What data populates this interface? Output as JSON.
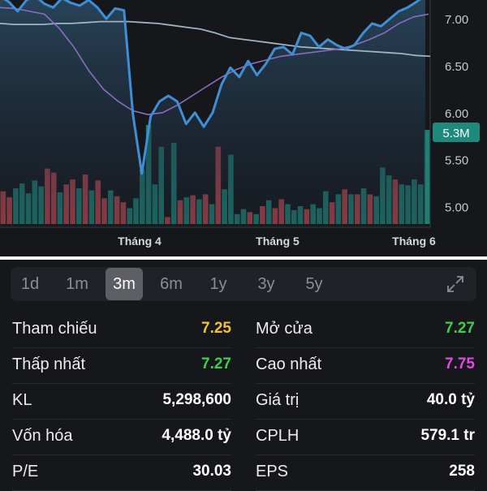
{
  "chart_data": {
    "type": "line",
    "x_labels": [
      "Tháng 4",
      "Tháng 5",
      "Tháng 6"
    ],
    "y_ticks": [
      "7.00",
      "6.50",
      "6.00",
      "5.50",
      "5.00"
    ],
    "y_range": [
      4.78,
      7.2
    ],
    "price_series": [
      7.24,
      7.18,
      7.08,
      7.2,
      7.24,
      7.16,
      7.12,
      7.22,
      7.17,
      7.14,
      7.2,
      7.12,
      7.0,
      7.11,
      7.09,
      5.98,
      5.35,
      5.96,
      6.12,
      6.18,
      6.12,
      5.88,
      6.0,
      5.85,
      6.0,
      6.3,
      6.48,
      6.38,
      6.55,
      6.4,
      6.52,
      6.68,
      6.7,
      6.62,
      6.85,
      6.82,
      6.7,
      6.78,
      6.72,
      6.68,
      6.72,
      6.85,
      6.95,
      6.92,
      7.0,
      7.08,
      7.12,
      7.18,
      7.25
    ],
    "ma_slow_series": [
      6.95,
      6.94,
      6.94,
      6.94,
      6.95,
      6.95,
      6.96,
      6.97,
      6.97,
      6.97,
      6.96,
      6.95,
      6.93,
      6.91,
      6.89,
      6.85,
      6.8,
      6.78,
      6.76,
      6.74,
      6.72,
      6.7,
      6.69,
      6.68,
      6.67,
      6.66,
      6.65,
      6.64,
      6.63,
      6.61,
      6.6
    ],
    "ma_fast_series": [
      7.12,
      7.11,
      7.08,
      7.05,
      6.9,
      6.7,
      6.45,
      6.25,
      6.12,
      6.02,
      5.98,
      6.0,
      6.08,
      6.18,
      6.28,
      6.38,
      6.46,
      6.52,
      6.56,
      6.6,
      6.62,
      6.64,
      6.66,
      6.68,
      6.72,
      6.78,
      6.85,
      6.95,
      7.02,
      7.05
    ],
    "volume_bars": [
      {
        "v": 0.33,
        "up": false
      },
      {
        "v": 0.27,
        "up": false
      },
      {
        "v": 0.36,
        "up": true
      },
      {
        "v": 0.41,
        "up": true
      },
      {
        "v": 0.31,
        "up": true
      },
      {
        "v": 0.44,
        "up": true
      },
      {
        "v": 0.38,
        "up": true
      },
      {
        "v": 0.56,
        "up": false
      },
      {
        "v": 0.52,
        "up": false
      },
      {
        "v": 0.32,
        "up": true
      },
      {
        "v": 0.4,
        "up": false
      },
      {
        "v": 0.45,
        "up": false
      },
      {
        "v": 0.36,
        "up": true
      },
      {
        "v": 0.5,
        "up": false
      },
      {
        "v": 0.34,
        "up": true
      },
      {
        "v": 0.44,
        "up": false
      },
      {
        "v": 0.26,
        "up": false
      },
      {
        "v": 0.34,
        "up": true
      },
      {
        "v": 0.28,
        "up": false
      },
      {
        "v": 0.22,
        "up": false
      },
      {
        "v": 0.16,
        "up": true
      },
      {
        "v": 0.26,
        "up": true
      },
      {
        "v": 0.55,
        "up": true
      },
      {
        "v": 1.0,
        "up": true
      },
      {
        "v": 0.4,
        "up": true
      },
      {
        "v": 0.78,
        "up": true
      },
      {
        "v": 0.07,
        "up": false
      },
      {
        "v": 0.82,
        "up": true
      },
      {
        "v": 0.24,
        "up": false
      },
      {
        "v": 0.27,
        "up": true
      },
      {
        "v": 0.29,
        "up": false
      },
      {
        "v": 0.25,
        "up": true
      },
      {
        "v": 0.3,
        "up": false
      },
      {
        "v": 0.2,
        "up": true
      },
      {
        "v": 0.78,
        "up": false
      },
      {
        "v": 0.35,
        "up": true
      },
      {
        "v": 0.7,
        "up": true
      },
      {
        "v": 0.1,
        "up": true
      },
      {
        "v": 0.15,
        "up": true
      },
      {
        "v": 0.12,
        "up": false
      },
      {
        "v": 0.1,
        "up": true
      },
      {
        "v": 0.18,
        "up": false
      },
      {
        "v": 0.24,
        "up": true
      },
      {
        "v": 0.16,
        "up": false
      },
      {
        "v": 0.25,
        "up": false
      },
      {
        "v": 0.2,
        "up": true
      },
      {
        "v": 0.14,
        "up": true
      },
      {
        "v": 0.18,
        "up": true
      },
      {
        "v": 0.15,
        "up": false
      },
      {
        "v": 0.2,
        "up": true
      },
      {
        "v": 0.16,
        "up": true
      },
      {
        "v": 0.33,
        "up": true
      },
      {
        "v": 0.22,
        "up": false
      },
      {
        "v": 0.3,
        "up": true
      },
      {
        "v": 0.35,
        "up": false
      },
      {
        "v": 0.3,
        "up": true
      },
      {
        "v": 0.3,
        "up": false
      },
      {
        "v": 0.36,
        "up": true
      },
      {
        "v": 0.3,
        "up": false
      },
      {
        "v": 0.28,
        "up": true
      },
      {
        "v": 0.57,
        "up": true
      },
      {
        "v": 0.49,
        "up": true
      },
      {
        "v": 0.45,
        "up": false
      },
      {
        "v": 0.4,
        "up": true
      },
      {
        "v": 0.39,
        "up": true
      },
      {
        "v": 0.45,
        "up": true
      },
      {
        "v": 0.4,
        "up": true
      },
      {
        "v": 0.95,
        "up": true
      }
    ],
    "volume_tag": "5.3M",
    "colors": {
      "price": "#3e8fd6",
      "ma_slow": "#9fb3c2",
      "ma_fast": "#8a6cc0",
      "up": "#1e7f73",
      "down": "#b5444d",
      "tag": "#1e8a7d"
    }
  },
  "tabs": [
    {
      "label": "1d",
      "active": false
    },
    {
      "label": "1m",
      "active": false
    },
    {
      "label": "3m",
      "active": true
    },
    {
      "label": "6m",
      "active": false
    },
    {
      "label": "1y",
      "active": false
    },
    {
      "label": "3y",
      "active": false
    },
    {
      "label": "5y",
      "active": false
    }
  ],
  "expand_icon": "expand-icon",
  "stats": [
    {
      "label": "Tham chiếu",
      "value": "7.25",
      "color": "#f2c12e"
    },
    {
      "label": "Mở cửa",
      "value": "7.27",
      "color": "#3ccf4e"
    },
    {
      "label": "Thấp nhất",
      "value": "7.27",
      "color": "#3ccf4e"
    },
    {
      "label": "Cao nhất",
      "value": "7.75",
      "color": "#e24ae0"
    },
    {
      "label": "KL",
      "value": "5,298,600",
      "color": "#ffffff"
    },
    {
      "label": "Giá trị",
      "value": "40.0 tỷ",
      "color": "#ffffff"
    },
    {
      "label": "Vốn hóa",
      "value": "4,488.0 tỷ",
      "color": "#ffffff"
    },
    {
      "label": "CPLH",
      "value": "579.1 tr",
      "color": "#ffffff"
    },
    {
      "label": "P/E",
      "value": "30.03",
      "color": "#ffffff"
    },
    {
      "label": "EPS",
      "value": "258",
      "color": "#ffffff"
    }
  ]
}
